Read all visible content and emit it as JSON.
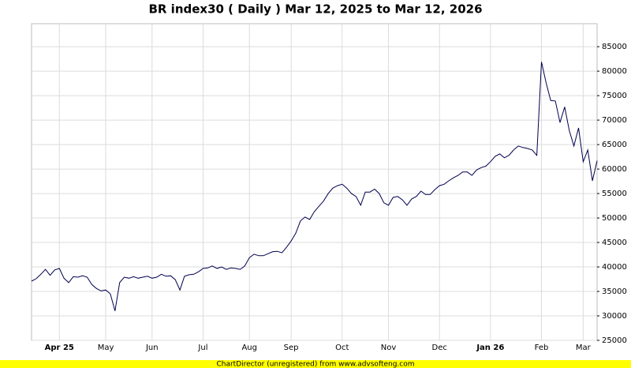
{
  "chart_data": {
    "type": "line",
    "title": "BR index30 ( Daily ) Mar 12, 2025 to Mar 12, 2026",
    "footer": "ChartDirector (unregistered) from www.advsofteng.com",
    "color": "#000050",
    "grid": true,
    "categories": [
      null,
      null,
      null,
      null,
      null,
      null,
      "Apr 25",
      null,
      null,
      null,
      null,
      null,
      null,
      null,
      null,
      null,
      "May",
      null,
      null,
      null,
      null,
      null,
      null,
      null,
      null,
      null,
      "Jun",
      null,
      null,
      null,
      null,
      null,
      null,
      null,
      null,
      null,
      null,
      "Jul",
      null,
      null,
      null,
      null,
      null,
      null,
      null,
      null,
      null,
      "Aug",
      null,
      null,
      null,
      null,
      null,
      null,
      null,
      null,
      "Sep",
      null,
      null,
      null,
      null,
      null,
      null,
      null,
      null,
      null,
      null,
      "Oct",
      null,
      null,
      null,
      null,
      null,
      null,
      null,
      null,
      null,
      "Nov",
      null,
      null,
      null,
      null,
      null,
      null,
      null,
      null,
      null,
      null,
      "Dec",
      null,
      null,
      null,
      null,
      null,
      null,
      null,
      null,
      null,
      null,
      "Jan 26",
      null,
      null,
      null,
      null,
      null,
      null,
      null,
      null,
      null,
      null,
      "Feb",
      null,
      null,
      null,
      null,
      null,
      null,
      null,
      null,
      "Mar",
      null,
      null,
      null
    ],
    "values": [
      37100,
      37600,
      38500,
      39500,
      38300,
      39400,
      39700,
      37700,
      36800,
      38000,
      37900,
      38200,
      37900,
      36400,
      35600,
      35100,
      35300,
      34500,
      31000,
      36800,
      37900,
      37700,
      38000,
      37700,
      37900,
      38100,
      37700,
      37900,
      38500,
      38100,
      38200,
      37400,
      35300,
      38100,
      38400,
      38500,
      39000,
      39700,
      39800,
      40200,
      39700,
      40000,
      39500,
      39800,
      39700,
      39500,
      40200,
      41900,
      42600,
      42300,
      42300,
      42700,
      43100,
      43200,
      42900,
      44000,
      45300,
      46900,
      49400,
      50200,
      49700,
      51300,
      52400,
      53500,
      55000,
      56100,
      56600,
      56900,
      56100,
      55000,
      54400,
      52600,
      55300,
      55300,
      55900,
      55000,
      53100,
      52600,
      54200,
      54400,
      53700,
      52600,
      53900,
      54400,
      55500,
      54800,
      54800,
      55800,
      56600,
      56900,
      57600,
      58200,
      58700,
      59400,
      59400,
      58700,
      59800,
      60300,
      60600,
      61500,
      62600,
      63100,
      62300,
      62800,
      63900,
      64700,
      64400,
      64200,
      63900,
      62800,
      81900,
      77600,
      74000,
      73900,
      69500,
      72700,
      67900,
      64700,
      68400,
      61500,
      63900,
      57600,
      61700
    ],
    "ylim": [
      25000,
      89700
    ],
    "yticks": [
      25000,
      30000,
      35000,
      40000,
      45000,
      50000,
      55000,
      60000,
      65000,
      70000,
      75000,
      80000,
      85000
    ]
  }
}
